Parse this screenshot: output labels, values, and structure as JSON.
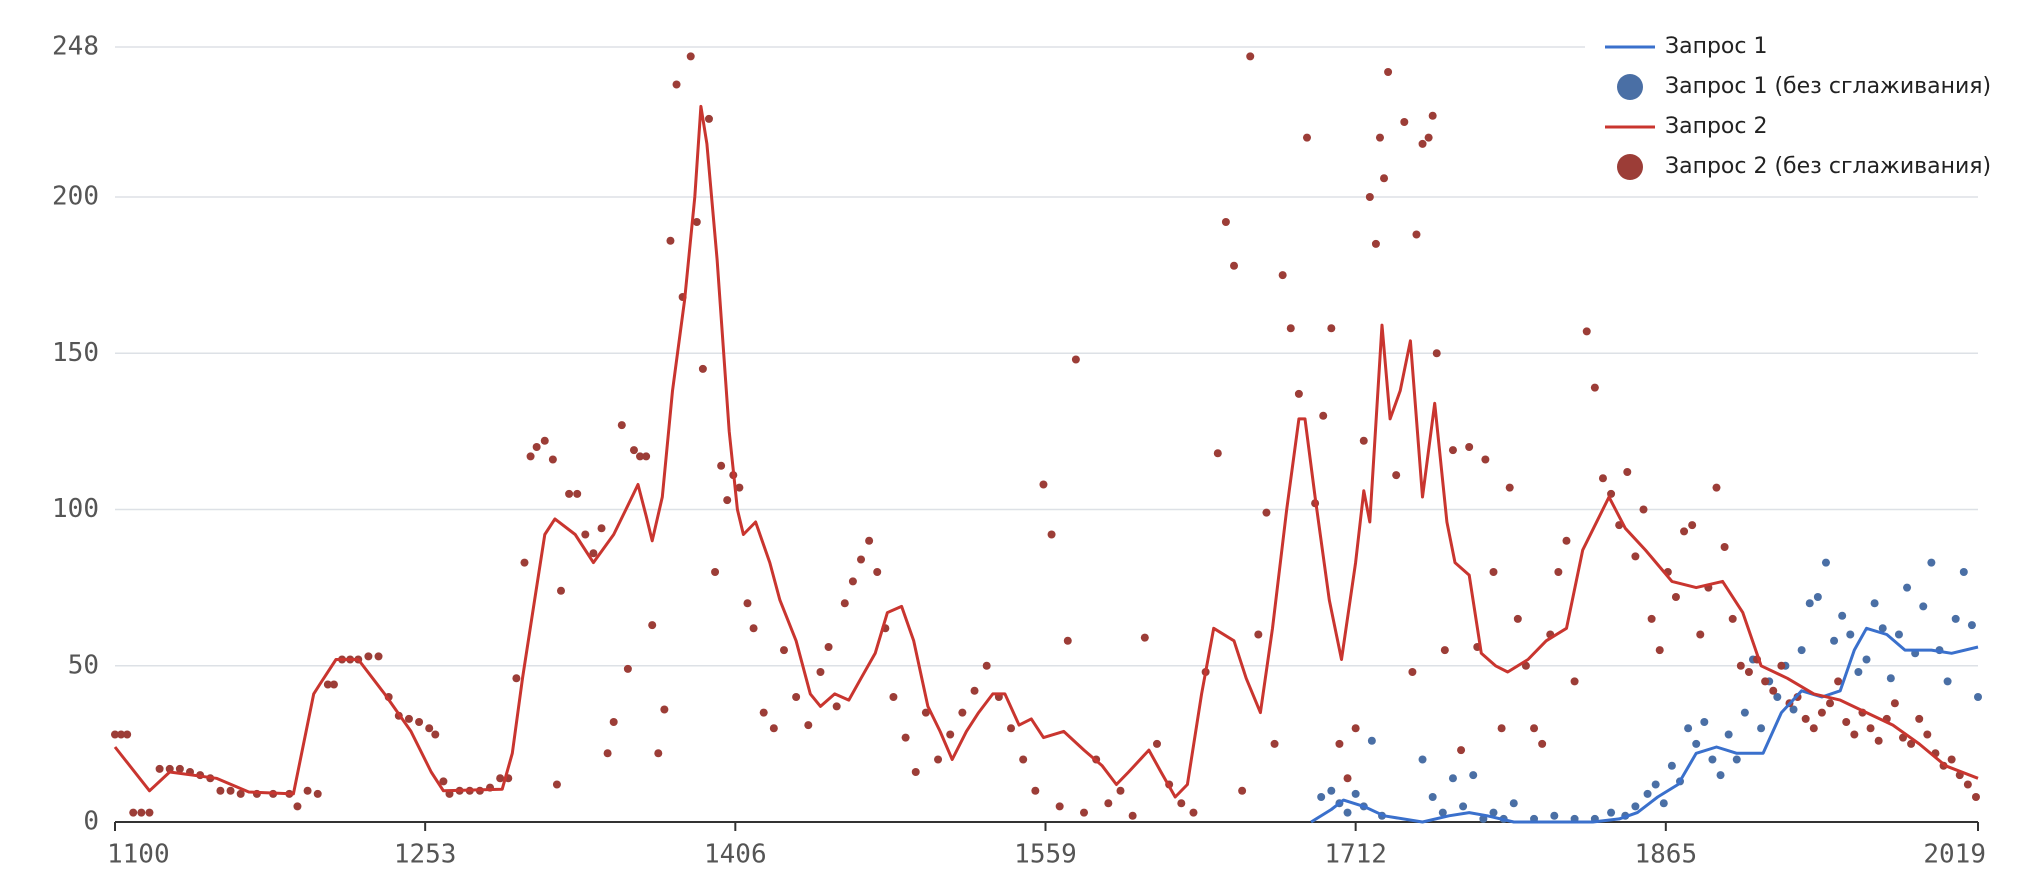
{
  "chart_data": {
    "type": "line",
    "xlim": [
      1100,
      2019
    ],
    "xticks": [
      1100,
      1253,
      1406,
      1559,
      1712,
      1865,
      2019
    ],
    "ylim": [
      0,
      248
    ],
    "yticks": [
      0,
      50,
      100,
      150,
      200,
      248
    ],
    "grid": true,
    "legend": "top-right",
    "series": [
      {
        "name": "Запрос 1",
        "color": "#3a70cc",
        "type": "line",
        "x": [
          1690,
          1700,
          1706,
          1716,
          1726,
          1745,
          1758,
          1768,
          1777,
          1790,
          1829,
          1842,
          1851,
          1861,
          1871,
          1880,
          1890,
          1900,
          1913,
          1922,
          1932,
          1942,
          1951,
          1958,
          1964,
          1974,
          1983,
          1996,
          2006,
          2019
        ],
        "values": [
          0,
          4,
          7,
          5,
          2,
          0,
          2,
          3,
          2,
          0,
          0,
          1,
          3,
          8,
          12,
          22,
          24,
          22,
          22,
          35,
          42,
          40,
          42,
          55,
          62,
          60,
          55,
          55,
          54,
          56
        ]
      },
      {
        "name": "Запрос 1 (без сглаживания)",
        "color": "#4a6fa5",
        "type": "scatter",
        "x": [
          1695,
          1700,
          1704,
          1708,
          1712,
          1716,
          1720,
          1725,
          1745,
          1750,
          1755,
          1760,
          1765,
          1770,
          1775,
          1780,
          1785,
          1790,
          1800,
          1810,
          1820,
          1830,
          1838,
          1845,
          1850,
          1856,
          1860,
          1864,
          1868,
          1872,
          1876,
          1880,
          1884,
          1888,
          1892,
          1896,
          1900,
          1904,
          1908,
          1912,
          1916,
          1920,
          1924,
          1928,
          1932,
          1936,
          1940,
          1944,
          1948,
          1952,
          1956,
          1960,
          1964,
          1968,
          1972,
          1976,
          1980,
          1984,
          1988,
          1992,
          1996,
          2000,
          2004,
          2008,
          2012,
          2016,
          2019
        ],
        "values": [
          8,
          10,
          6,
          3,
          9,
          5,
          26,
          2,
          20,
          8,
          3,
          14,
          5,
          15,
          1,
          3,
          1,
          6,
          1,
          2,
          1,
          1,
          3,
          2,
          5,
          9,
          12,
          6,
          18,
          13,
          30,
          25,
          32,
          20,
          15,
          28,
          20,
          35,
          52,
          30,
          45,
          40,
          50,
          36,
          55,
          70,
          72,
          83,
          58,
          66,
          60,
          48,
          52,
          70,
          62,
          46,
          60,
          75,
          54,
          69,
          83,
          55,
          45,
          65,
          80,
          63,
          40
        ]
      },
      {
        "name": "Запрос 2",
        "color": "#c9352f",
        "type": "line",
        "x": [
          1100,
          1117,
          1127,
          1150,
          1166,
          1188,
          1198,
          1201,
          1209,
          1220,
          1233,
          1246,
          1256,
          1262,
          1291,
          1296,
          1301,
          1307,
          1312,
          1317,
          1327,
          1336,
          1346,
          1352,
          1358,
          1362,
          1365,
          1370,
          1375,
          1381,
          1386,
          1389,
          1392,
          1397,
          1403,
          1407,
          1410,
          1416,
          1423,
          1428,
          1436,
          1443,
          1448,
          1455,
          1462,
          1468,
          1475,
          1481,
          1488,
          1494,
          1501,
          1507,
          1513,
          1520,
          1526,
          1533,
          1539,
          1546,
          1552,
          1558,
          1568,
          1578,
          1587,
          1594,
          1600,
          1610,
          1616,
          1623,
          1629,
          1636,
          1642,
          1652,
          1658,
          1665,
          1671,
          1678,
          1684,
          1687,
          1692,
          1699,
          1705,
          1712,
          1716,
          1719,
          1725,
          1729,
          1734,
          1739,
          1745,
          1751,
          1757,
          1761,
          1768,
          1774,
          1781,
          1787,
          1797,
          1806,
          1816,
          1824,
          1837,
          1845,
          1855,
          1868,
          1880,
          1893,
          1903,
          1912,
          1925,
          1938,
          1951,
          1964,
          1977,
          1990,
          2003,
          2019
        ],
        "values": [
          24,
          10,
          16,
          14,
          9.6,
          9,
          41,
          44,
          52,
          52,
          41,
          29,
          16,
          10,
          10.5,
          22,
          46,
          71,
          92,
          97,
          92,
          83,
          92,
          100,
          108,
          98,
          90,
          104,
          138,
          167,
          200,
          229,
          217,
          180,
          125,
          100,
          92,
          96,
          83,
          71,
          58,
          41,
          37,
          41,
          39,
          46,
          54,
          67,
          69,
          58,
          37,
          29,
          20,
          29,
          35,
          41,
          41,
          31,
          33,
          27,
          29,
          23,
          18,
          12,
          16,
          23,
          16,
          8,
          12,
          41,
          62,
          58,
          46,
          35,
          62,
          100,
          129,
          129,
          104,
          71,
          52,
          83,
          106,
          96,
          159,
          129,
          138,
          154,
          104,
          134,
          96,
          83,
          79,
          54,
          50,
          48,
          52,
          58,
          62,
          87,
          104,
          94,
          87,
          77,
          75,
          77,
          67,
          50,
          46,
          41,
          39,
          35,
          31,
          25,
          18,
          14
        ]
      },
      {
        "name": "Запрос 2 (без сглаживания)",
        "color": "#9c3d37",
        "type": "scatter",
        "x": [
          1100,
          1103,
          1106,
          1109,
          1113,
          1117,
          1122,
          1127,
          1132,
          1137,
          1142,
          1147,
          1152,
          1157,
          1162,
          1170,
          1178,
          1186,
          1190,
          1195,
          1200,
          1205,
          1208,
          1212,
          1216,
          1220,
          1225,
          1230,
          1235,
          1240,
          1245,
          1250,
          1255,
          1258,
          1262,
          1265,
          1270,
          1275,
          1280,
          1285,
          1290,
          1294,
          1298,
          1302,
          1305,
          1308,
          1312,
          1316,
          1318,
          1320,
          1324,
          1328,
          1332,
          1336,
          1340,
          1343,
          1346,
          1350,
          1353,
          1356,
          1359,
          1362,
          1365,
          1368,
          1371,
          1374,
          1377,
          1380,
          1384,
          1387,
          1390,
          1393,
          1396,
          1399,
          1402,
          1405,
          1408,
          1412,
          1415,
          1420,
          1425,
          1430,
          1436,
          1442,
          1448,
          1452,
          1456,
          1460,
          1464,
          1468,
          1472,
          1476,
          1480,
          1484,
          1490,
          1495,
          1500,
          1506,
          1512,
          1518,
          1524,
          1530,
          1536,
          1542,
          1548,
          1554,
          1558,
          1562,
          1566,
          1570,
          1574,
          1578,
          1584,
          1590,
          1596,
          1602,
          1608,
          1614,
          1620,
          1626,
          1632,
          1638,
          1644,
          1648,
          1652,
          1656,
          1660,
          1664,
          1668,
          1672,
          1676,
          1680,
          1684,
          1688,
          1692,
          1696,
          1700,
          1704,
          1708,
          1712,
          1716,
          1719,
          1722,
          1724,
          1726,
          1728,
          1732,
          1736,
          1740,
          1742,
          1745,
          1748,
          1750,
          1752,
          1756,
          1760,
          1764,
          1768,
          1772,
          1776,
          1780,
          1784,
          1788,
          1792,
          1796,
          1800,
          1804,
          1808,
          1812,
          1816,
          1820,
          1826,
          1830,
          1834,
          1838,
          1842,
          1846,
          1850,
          1854,
          1858,
          1862,
          1866,
          1870,
          1874,
          1878,
          1882,
          1886,
          1890,
          1894,
          1898,
          1902,
          1906,
          1910,
          1914,
          1918,
          1922,
          1926,
          1930,
          1934,
          1938,
          1942,
          1946,
          1950,
          1954,
          1958,
          1962,
          1966,
          1970,
          1974,
          1978,
          1982,
          1986,
          1990,
          1994,
          1998,
          2002,
          2006,
          2010,
          2014,
          2018
        ],
        "values": [
          28,
          28,
          28,
          3,
          3,
          3,
          17,
          17,
          17,
          16,
          15,
          14,
          10,
          10,
          9,
          9,
          9,
          9,
          5,
          10,
          9,
          44,
          44,
          52,
          52,
          52,
          53,
          53,
          40,
          34,
          33,
          32,
          30,
          28,
          13,
          9,
          10,
          10,
          10,
          11,
          14,
          14,
          46,
          83,
          117,
          120,
          122,
          116,
          12,
          74,
          105,
          105,
          92,
          86,
          94,
          22,
          32,
          127,
          49,
          119,
          117,
          117,
          63,
          22,
          36,
          186,
          236,
          168,
          245,
          192,
          145,
          225,
          80,
          114,
          103,
          111,
          107,
          70,
          62,
          35,
          30,
          55,
          40,
          31,
          48,
          56,
          37,
          70,
          77,
          84,
          90,
          80,
          62,
          40,
          27,
          16,
          35,
          20,
          28,
          35,
          42,
          50,
          40,
          30,
          20,
          10,
          108,
          92,
          5,
          58,
          148,
          3,
          20,
          6,
          10,
          2,
          59,
          25,
          12,
          6,
          3,
          48,
          118,
          192,
          178,
          10,
          245,
          60,
          99,
          25,
          175,
          158,
          137,
          219,
          102,
          130,
          158,
          25,
          14,
          30,
          122,
          200,
          185,
          219,
          206,
          240,
          111,
          224,
          48,
          188,
          217,
          219,
          226,
          150,
          55,
          119,
          23,
          120,
          56,
          116,
          80,
          30,
          107,
          65,
          50,
          30,
          25,
          60,
          80,
          90,
          45,
          157,
          139,
          110,
          105,
          95,
          112,
          85,
          100,
          65,
          55,
          80,
          72,
          93,
          95,
          60,
          75,
          107,
          88,
          65,
          50,
          48,
          52,
          45,
          42,
          50,
          38,
          40,
          33,
          30,
          35,
          38,
          45,
          32,
          28,
          35,
          30,
          26,
          33,
          38,
          27,
          25,
          33,
          28,
          22,
          18,
          20,
          15,
          12,
          8
        ]
      }
    ]
  }
}
